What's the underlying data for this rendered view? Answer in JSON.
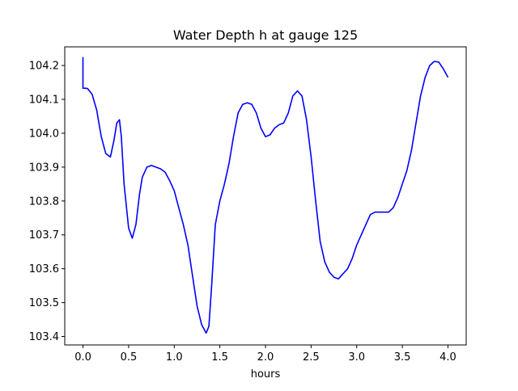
{
  "chart_data": {
    "type": "line",
    "title": "Water Depth h at gauge 125",
    "xlabel": "hours",
    "ylabel": "",
    "xlim": [
      -0.2,
      4.2
    ],
    "ylim": [
      103.375,
      104.255
    ],
    "grid": false,
    "legend": "none",
    "x_ticks": [
      0.0,
      0.5,
      1.0,
      1.5,
      2.0,
      2.5,
      3.0,
      3.5,
      4.0
    ],
    "x_tick_labels": [
      "0.0",
      "0.5",
      "1.0",
      "1.5",
      "2.0",
      "2.5",
      "3.0",
      "3.5",
      "4.0"
    ],
    "y_ticks": [
      103.4,
      103.5,
      103.6,
      103.7,
      103.8,
      103.9,
      104.0,
      104.1,
      104.2
    ],
    "y_tick_labels": [
      "103.4",
      "103.5",
      "103.6",
      "103.7",
      "103.8",
      "103.9",
      "104.0",
      "104.1",
      "104.2"
    ],
    "series": [
      {
        "color": "#0000ff",
        "x": [
          0.0,
          0.0,
          0.0,
          0.02,
          0.05,
          0.1,
          0.15,
          0.2,
          0.25,
          0.3,
          0.34,
          0.37,
          0.4,
          0.42,
          0.45,
          0.5,
          0.54,
          0.58,
          0.62,
          0.65,
          0.7,
          0.75,
          0.8,
          0.85,
          0.9,
          0.95,
          1.0,
          1.05,
          1.1,
          1.15,
          1.2,
          1.25,
          1.3,
          1.35,
          1.38,
          1.41,
          1.45,
          1.5,
          1.55,
          1.6,
          1.65,
          1.7,
          1.75,
          1.8,
          1.85,
          1.9,
          1.95,
          2.0,
          2.05,
          2.1,
          2.15,
          2.2,
          2.25,
          2.3,
          2.35,
          2.4,
          2.45,
          2.5,
          2.55,
          2.6,
          2.65,
          2.7,
          2.75,
          2.8,
          2.85,
          2.9,
          2.95,
          3.0,
          3.05,
          3.1,
          3.15,
          3.2,
          3.25,
          3.3,
          3.35,
          3.4,
          3.45,
          3.5,
          3.55,
          3.6,
          3.65,
          3.7,
          3.75,
          3.8,
          3.85,
          3.9,
          3.95,
          4.0
        ],
        "y": [
          104.225,
          104.135,
          104.133,
          104.133,
          104.132,
          104.115,
          104.068,
          103.99,
          103.94,
          103.93,
          103.98,
          104.03,
          104.04,
          103.99,
          103.85,
          103.72,
          103.69,
          103.73,
          103.82,
          103.87,
          103.9,
          103.905,
          103.9,
          103.895,
          103.885,
          103.86,
          103.83,
          103.78,
          103.73,
          103.67,
          103.58,
          103.49,
          103.435,
          103.41,
          103.43,
          103.55,
          103.73,
          103.8,
          103.85,
          103.91,
          103.99,
          104.06,
          104.085,
          104.09,
          104.085,
          104.06,
          104.015,
          103.99,
          103.995,
          104.015,
          104.025,
          104.03,
          104.06,
          104.11,
          104.125,
          104.11,
          104.04,
          103.93,
          103.8,
          103.68,
          103.62,
          103.59,
          103.575,
          103.57,
          103.585,
          103.6,
          103.63,
          103.67,
          103.7,
          103.73,
          103.76,
          103.767,
          103.767,
          103.767,
          103.767,
          103.78,
          103.81,
          103.85,
          103.89,
          103.95,
          104.03,
          104.11,
          104.165,
          104.2,
          104.212,
          104.21,
          104.19,
          104.165
        ]
      }
    ]
  }
}
